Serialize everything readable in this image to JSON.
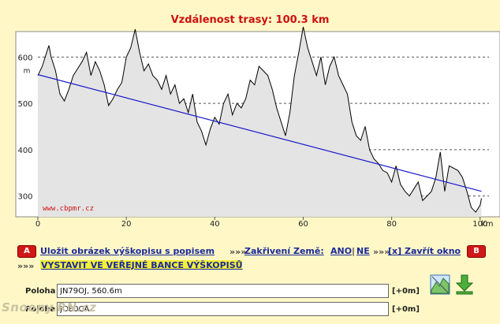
{
  "page": {
    "title": "Vzdálenost trasy: 100.3 km"
  },
  "chart_data": {
    "type": "area",
    "title": "Vzdálenost trasy: 100.3 km",
    "ylabel": "m",
    "xlabel": "km",
    "xlim": [
      0,
      102
    ],
    "ylim": [
      255,
      655
    ],
    "x_ticks": [
      "0",
      "20",
      "40",
      "60",
      "80",
      "100"
    ],
    "y_ticks": [
      "300",
      "400",
      "500",
      "600"
    ],
    "x_tick_values": [
      0,
      20,
      40,
      60,
      80,
      100
    ],
    "y_tick_values": [
      300,
      400,
      500,
      600
    ],
    "grid": "horizontal dashed",
    "annotation": "www.cbpmr.cz",
    "series": [
      {
        "values_x": [
          0,
          1,
          2,
          2.5,
          3,
          4,
          5,
          6,
          7,
          8,
          9,
          10,
          11,
          12,
          13,
          14,
          15,
          16,
          17,
          18,
          19,
          20,
          21,
          22,
          23,
          24,
          25,
          26,
          27,
          28,
          29,
          30,
          31,
          32,
          33,
          34,
          35,
          36,
          37,
          38,
          39,
          40,
          41,
          42,
          43,
          44,
          45,
          46,
          47,
          48,
          49,
          50,
          51,
          52,
          53,
          54,
          55,
          56,
          57,
          58,
          59,
          60,
          61,
          62,
          63,
          64,
          65,
          66,
          67,
          68,
          69,
          70,
          71,
          72,
          73,
          74,
          75,
          76,
          77,
          78,
          79,
          80,
          81,
          82,
          83,
          84,
          85,
          86,
          87,
          88,
          89,
          90,
          91,
          92,
          93,
          94,
          95,
          96,
          97,
          98,
          99,
          100,
          100.3
        ],
        "values_y": [
          560,
          580,
          610,
          625,
          600,
          570,
          520,
          505,
          530,
          560,
          575,
          590,
          610,
          560,
          590,
          570,
          540,
          495,
          510,
          530,
          545,
          600,
          620,
          660,
          610,
          570,
          585,
          560,
          550,
          530,
          560,
          520,
          540,
          500,
          510,
          480,
          520,
          460,
          440,
          410,
          445,
          470,
          455,
          500,
          520,
          475,
          500,
          490,
          510,
          550,
          540,
          580,
          570,
          560,
          530,
          490,
          460,
          430,
          480,
          560,
          610,
          665,
          620,
          590,
          560,
          600,
          540,
          580,
          600,
          560,
          540,
          520,
          460,
          430,
          420,
          450,
          400,
          380,
          370,
          355,
          350,
          330,
          365,
          325,
          310,
          300,
          315,
          330,
          290,
          300,
          310,
          340,
          395,
          310,
          365,
          360,
          355,
          340,
          310,
          275,
          265,
          280,
          295
        ],
        "color": "#000000"
      },
      {
        "values_x": [
          0,
          100.3
        ],
        "values_y": [
          562,
          310
        ],
        "color": "#1a1acc"
      }
    ]
  },
  "actions": {
    "badge_a": "A",
    "badge_b": "B",
    "save_image": "Uložit obrázek výškopisu s popisem",
    "arrows": "»»»",
    "curvature_label": "Zakřivení Země:",
    "curvature_yes": "ANO",
    "separator": "|",
    "curvature_no": "NE",
    "close_window": "[x] Zavřít okno",
    "publish": "VYSTAVIT VE VEŘEJNÉ BANCE VÝŠKOPISŮ"
  },
  "form": {
    "pos_a_label": "Poloha A:",
    "pos_a_value": "JN79OJ, 560.6m",
    "pos_a_delta": "[+0m]",
    "pos_b_label": "Poloha B:",
    "pos_b_value": "JO80CA",
    "pos_b_delta": "[+0m]"
  },
  "icons": {
    "profile": "profile-chart-icon",
    "download": "download-arrow-icon"
  },
  "watermark": "Snoopy.RN.cz"
}
